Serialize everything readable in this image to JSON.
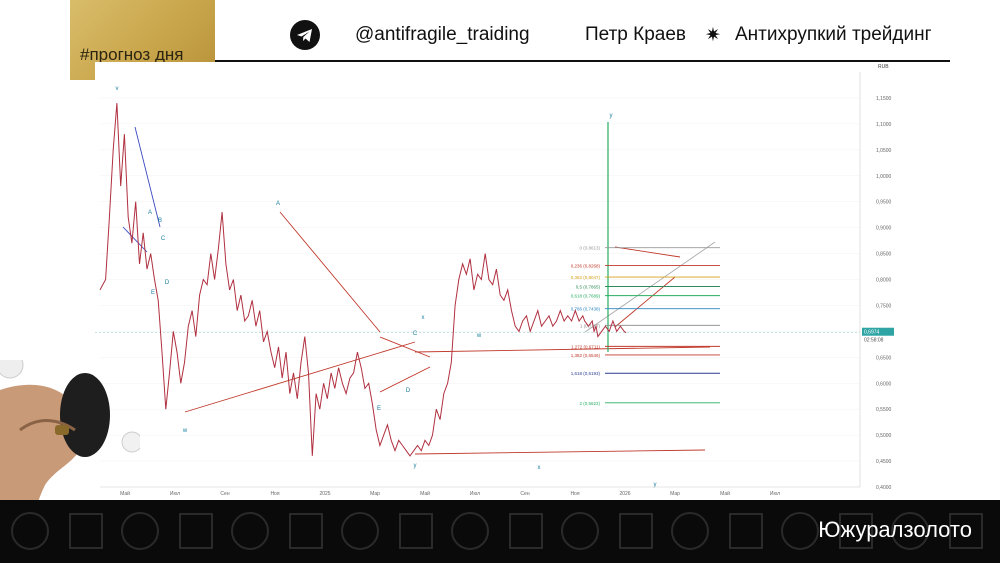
{
  "badge": {
    "text": "#прогноз дня"
  },
  "header": {
    "icon": "telegram-icon",
    "handle": "@antifragile_traiding",
    "author": "Петр Краев",
    "separator": "✷",
    "brand": "Антихрупкий трейдинг"
  },
  "chart_data": {
    "type": "line",
    "title": "",
    "xlabel": "",
    "ylabel": "",
    "ylim": [
      0.4,
      1.2
    ],
    "y_ticks": [
      "1,1500",
      "1,1000",
      "1,0500",
      "1,0000",
      "0,9500",
      "0,9000",
      "0,8500",
      "0,8000",
      "0,7500",
      "0,7000",
      "0,6500",
      "0,6000",
      "0,5500",
      "0,5000",
      "0,4500",
      "0,4000"
    ],
    "y_tick_values": [
      1.15,
      1.1,
      1.05,
      1.0,
      0.95,
      0.9,
      0.85,
      0.8,
      0.75,
      0.7,
      0.65,
      0.6,
      0.55,
      0.5,
      0.45,
      0.4
    ],
    "x_ticks": [
      "Май",
      "Июл",
      "Сен",
      "Ноя",
      "2025",
      "Мар",
      "Май",
      "Июл",
      "Сен",
      "Ноя",
      "2026",
      "Мар",
      "Май",
      "Июл"
    ],
    "axis_currency": "RUB",
    "last_price_label": "0,6974",
    "last_price_value": 0.6974,
    "countdown": "02:58:08",
    "fib_levels": [
      {
        "label": "0 (0,8613)",
        "value": 0.8613
      },
      {
        "label": "0,236 (0,8268)",
        "value": 0.8268
      },
      {
        "label": "0,382 (0,8047)",
        "value": 0.8047
      },
      {
        "label": "0,5 (0,7865)",
        "value": 0.7865
      },
      {
        "label": "0,618 (0,7689)",
        "value": 0.7689
      },
      {
        "label": "0,786 (0,7438)",
        "value": 0.7438
      },
      {
        "label": "1 (0,7117)",
        "value": 0.7117
      },
      {
        "label": "1,272 (0,6711)",
        "value": 0.6711
      },
      {
        "label": "1,382 (0,6546)",
        "value": 0.6546
      },
      {
        "label": "1,618 (0,6193)",
        "value": 0.6193
      },
      {
        "label": "2 (0,5622)",
        "value": 0.5622
      }
    ],
    "wave_labels": [
      "v",
      "A",
      "B",
      "C",
      "D",
      "E",
      "A",
      "w",
      "C",
      "x",
      "D",
      "E",
      "w",
      "y",
      "x",
      "y",
      "y"
    ],
    "series": [
      {
        "x": [
          0,
          6,
          10,
          14,
          18,
          22,
          26,
          30,
          34,
          38,
          42,
          46,
          50,
          54,
          58,
          62,
          66,
          70,
          74,
          78,
          82,
          86,
          90,
          94,
          98,
          102,
          106,
          110,
          114,
          118,
          122,
          126,
          130,
          134,
          138,
          142,
          146,
          150,
          154,
          158,
          162,
          166,
          170,
          174,
          178,
          182,
          186,
          190,
          194,
          198,
          202,
          206,
          210,
          214,
          218,
          222,
          226,
          230,
          234,
          238,
          242,
          246,
          250,
          254,
          258,
          262,
          266,
          270,
          274,
          278,
          282,
          286,
          290,
          294,
          298,
          302,
          306,
          310,
          314,
          318,
          322,
          326,
          330,
          334,
          338,
          342,
          346,
          350,
          354,
          358,
          362,
          366,
          370,
          374,
          378,
          382,
          386,
          390,
          394,
          398,
          402,
          406,
          410,
          414,
          418,
          422,
          426,
          430,
          434,
          438,
          442,
          446,
          450,
          454,
          458,
          462,
          466,
          470,
          474,
          478,
          482,
          486,
          490,
          494,
          498,
          502,
          506,
          510,
          514,
          516,
          520,
          524,
          526,
          528,
          530,
          534,
          538,
          542,
          546,
          550,
          554,
          558,
          560
        ],
        "y": [
          0.78,
          0.8,
          0.92,
          1.05,
          1.14,
          0.98,
          1.08,
          0.92,
          0.87,
          0.95,
          0.83,
          0.89,
          0.82,
          0.85,
          0.8,
          0.76,
          0.66,
          0.55,
          0.62,
          0.7,
          0.66,
          0.6,
          0.64,
          0.71,
          0.74,
          0.69,
          0.77,
          0.8,
          0.79,
          0.85,
          0.8,
          0.86,
          0.93,
          0.83,
          0.78,
          0.8,
          0.74,
          0.77,
          0.72,
          0.73,
          0.76,
          0.71,
          0.74,
          0.68,
          0.7,
          0.66,
          0.63,
          0.67,
          0.61,
          0.66,
          0.58,
          0.62,
          0.57,
          0.64,
          0.69,
          0.62,
          0.46,
          0.58,
          0.55,
          0.6,
          0.57,
          0.62,
          0.59,
          0.63,
          0.6,
          0.58,
          0.61,
          0.62,
          0.66,
          0.63,
          0.59,
          0.6,
          0.56,
          0.51,
          0.48,
          0.5,
          0.52,
          0.49,
          0.47,
          0.49,
          0.48,
          0.47,
          0.46,
          0.47,
          0.48,
          0.47,
          0.49,
          0.48,
          0.5,
          0.55,
          0.53,
          0.58,
          0.6,
          0.64,
          0.75,
          0.8,
          0.83,
          0.81,
          0.84,
          0.78,
          0.81,
          0.8,
          0.85,
          0.8,
          0.79,
          0.82,
          0.77,
          0.76,
          0.78,
          0.74,
          0.71,
          0.7,
          0.72,
          0.73,
          0.7,
          0.72,
          0.74,
          0.71,
          0.72,
          0.73,
          0.71,
          0.72,
          0.74,
          0.72,
          0.73,
          0.72,
          0.74,
          0.72,
          0.73,
          0.72,
          0.71,
          0.72,
          0.7,
          0.71,
          0.69,
          0.7,
          0.71,
          0.7,
          0.72,
          0.7,
          0.71,
          0.7,
          0.6974
        ]
      }
    ]
  },
  "footer": {
    "ticker": "Южуралзолото"
  }
}
